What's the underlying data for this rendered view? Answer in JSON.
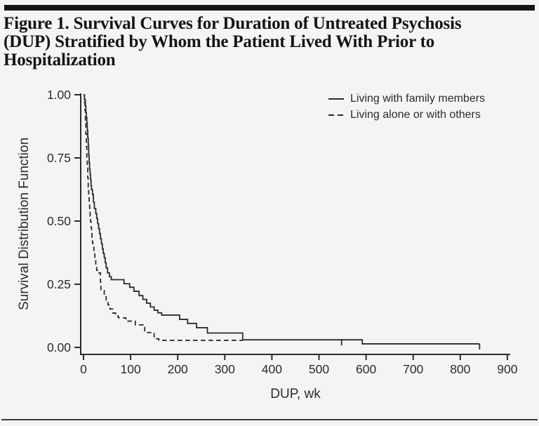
{
  "header": {
    "title_lines": [
      "Figure 1. Survival Curves for Duration of Untreated Psychosis",
      "(DUP) Stratified by Whom the Patient Lived With Prior to",
      "Hospitalization"
    ]
  },
  "colors": {
    "line": "#2b2b2b",
    "axis": "#2b2b2b",
    "rule": "#151515",
    "background": "#f4f4f2"
  },
  "chart_data": {
    "type": "line",
    "subtype": "kaplan-meier-step",
    "title": "Survival Curves for Duration of Untreated Psychosis (DUP) Stratified by Whom the Patient Lived With Prior to Hospitalization",
    "xlabel": "DUP, wk",
    "ylabel": "Survival Distribution Function",
    "xlim": [
      0,
      900
    ],
    "ylim": [
      0.0,
      1.0
    ],
    "grid": false,
    "legend_position": "top-right-inside",
    "xticks": [
      {
        "value": 0,
        "label": "0"
      },
      {
        "value": 100,
        "label": "100"
      },
      {
        "value": 200,
        "label": "200"
      },
      {
        "value": 300,
        "label": "300"
      },
      {
        "value": 400,
        "label": "400"
      },
      {
        "value": 500,
        "label": "500"
      },
      {
        "value": 600,
        "label": "600"
      },
      {
        "value": 700,
        "label": "700"
      },
      {
        "value": 800,
        "label": "800"
      },
      {
        "value": 900,
        "label": "900"
      }
    ],
    "yticks": [
      {
        "value": 0.0,
        "label": "0.00"
      },
      {
        "value": 0.25,
        "label": "0.25"
      },
      {
        "value": 0.5,
        "label": "0.50"
      },
      {
        "value": 0.75,
        "label": "0.75"
      },
      {
        "value": 1.0,
        "label": "1.00"
      }
    ],
    "series": [
      {
        "name": "Living with family members",
        "style": "solid",
        "color": "#2b2b2b",
        "points": [
          [
            0,
            1.0
          ],
          [
            2,
            0.98
          ],
          [
            4,
            0.955
          ],
          [
            5,
            0.93
          ],
          [
            6,
            0.91
          ],
          [
            7,
            0.89
          ],
          [
            8,
            0.86
          ],
          [
            9,
            0.83
          ],
          [
            10,
            0.8
          ],
          [
            11,
            0.76
          ],
          [
            12,
            0.73
          ],
          [
            13,
            0.705
          ],
          [
            14,
            0.685
          ],
          [
            15,
            0.665
          ],
          [
            16,
            0.64
          ],
          [
            17,
            0.625
          ],
          [
            19,
            0.605
          ],
          [
            21,
            0.575
          ],
          [
            23,
            0.55
          ],
          [
            26,
            0.53
          ],
          [
            28,
            0.51
          ],
          [
            30,
            0.49
          ],
          [
            32,
            0.47
          ],
          [
            34,
            0.45
          ],
          [
            36,
            0.43
          ],
          [
            38,
            0.41
          ],
          [
            40,
            0.39
          ],
          [
            42,
            0.372
          ],
          [
            44,
            0.355
          ],
          [
            46,
            0.335
          ],
          [
            48,
            0.315
          ],
          [
            51,
            0.295
          ],
          [
            55,
            0.28
          ],
          [
            59,
            0.268
          ],
          [
            86,
            0.252
          ],
          [
            98,
            0.238
          ],
          [
            107,
            0.222
          ],
          [
            118,
            0.205
          ],
          [
            126,
            0.19
          ],
          [
            134,
            0.175
          ],
          [
            142,
            0.16
          ],
          [
            150,
            0.147
          ],
          [
            158,
            0.137
          ],
          [
            166,
            0.128
          ],
          [
            204,
            0.111
          ],
          [
            221,
            0.095
          ],
          [
            240,
            0.078
          ],
          [
            263,
            0.057
          ],
          [
            338,
            0.03
          ],
          [
            592,
            0.014
          ],
          [
            841,
            0.014
          ]
        ],
        "censor_ticks": [
          {
            "x": 548,
            "v": 0.03
          }
        ],
        "end_tick": true
      },
      {
        "name": "Living alone or with others",
        "style": "dashed",
        "color": "#2b2b2b",
        "points": [
          [
            0,
            1.0
          ],
          [
            2,
            0.97
          ],
          [
            3,
            0.94
          ],
          [
            4,
            0.895
          ],
          [
            5,
            0.845
          ],
          [
            6,
            0.795
          ],
          [
            7,
            0.75
          ],
          [
            8,
            0.71
          ],
          [
            9,
            0.67
          ],
          [
            10,
            0.635
          ],
          [
            11,
            0.6
          ],
          [
            12,
            0.575
          ],
          [
            13,
            0.55
          ],
          [
            14,
            0.52
          ],
          [
            15,
            0.498
          ],
          [
            16,
            0.475
          ],
          [
            17,
            0.455
          ],
          [
            18,
            0.435
          ],
          [
            19,
            0.415
          ],
          [
            20,
            0.4
          ],
          [
            22,
            0.375
          ],
          [
            24,
            0.35
          ],
          [
            26,
            0.325
          ],
          [
            28,
            0.305
          ],
          [
            30,
            0.295
          ],
          [
            36,
            0.258
          ],
          [
            37,
            0.225
          ],
          [
            44,
            0.205
          ],
          [
            48,
            0.185
          ],
          [
            52,
            0.168
          ],
          [
            56,
            0.152
          ],
          [
            62,
            0.136
          ],
          [
            68,
            0.124
          ],
          [
            74,
            0.117
          ],
          [
            90,
            0.104
          ],
          [
            110,
            0.089
          ],
          [
            130,
            0.059
          ],
          [
            150,
            0.034
          ],
          [
            160,
            0.028
          ],
          [
            338,
            0.028
          ]
        ],
        "censor_ticks": [],
        "end_tick": false
      }
    ]
  }
}
